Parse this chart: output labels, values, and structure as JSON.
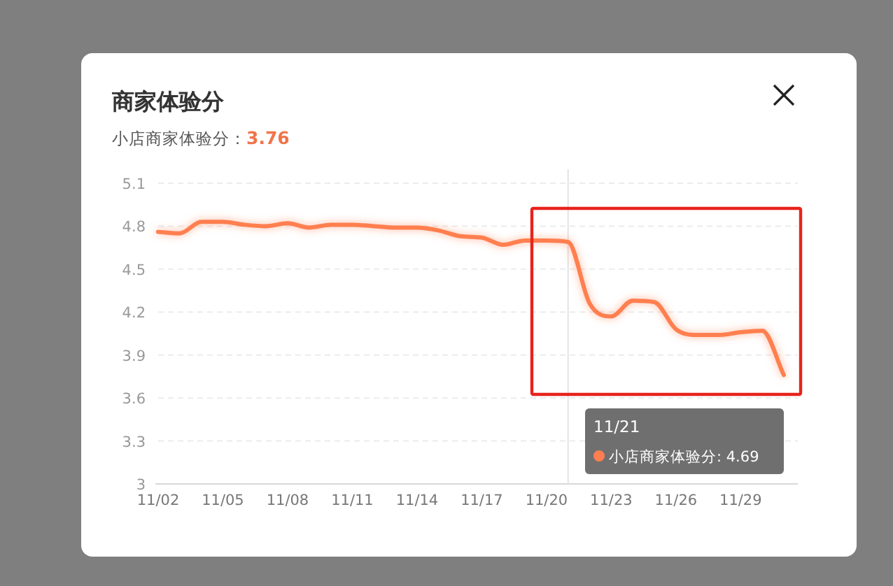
{
  "chart_data": {
    "type": "line",
    "title": "商家体验分",
    "subtitle": "小店商家体验分：",
    "annotations": [
      "3.76",
      "11/21",
      "小店商家体验分: 4.69"
    ],
    "categories": [
      "11/02",
      null,
      null,
      "11/05",
      null,
      null,
      "11/08",
      null,
      null,
      "11/11",
      null,
      null,
      "11/14",
      null,
      null,
      "11/17",
      null,
      null,
      "11/20",
      null,
      null,
      "11/23",
      null,
      null,
      "11/26",
      null,
      null,
      "11/29",
      null,
      null
    ],
    "series": [
      {
        "color": "#ff7f50",
        "values": [
          4.76,
          4.75,
          4.83,
          4.83,
          4.81,
          4.8,
          4.82,
          4.79,
          4.81,
          4.81,
          4.8,
          4.79,
          4.79,
          4.77,
          4.73,
          4.72,
          4.67,
          4.7,
          4.7,
          4.69,
          4.26,
          4.17,
          4.28,
          4.27,
          4.08,
          4.04,
          4.04,
          4.06,
          4.07,
          3.76
        ]
      }
    ],
    "ylim": [
      3,
      5.1
    ],
    "yticks": [
      3,
      3.3,
      3.6,
      3.9,
      4.2,
      4.5,
      4.8,
      5.1
    ],
    "grid": "y",
    "marker": "none",
    "line_style": "solid",
    "legend": false
  }
}
